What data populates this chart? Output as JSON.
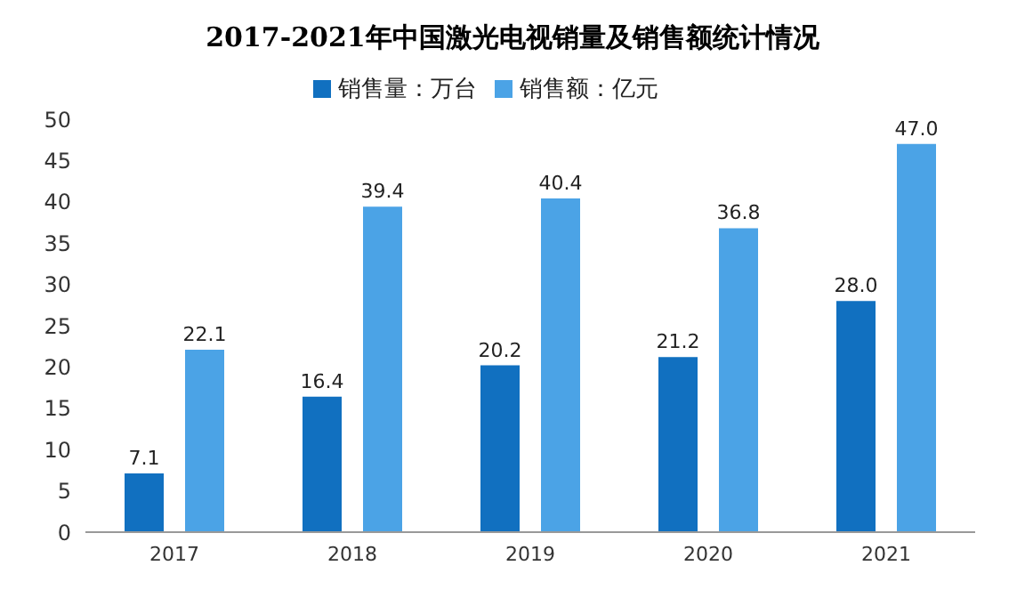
{
  "chart_data": {
    "type": "bar",
    "title": "2017-2021年中国激光电视销量及销售额统计情况",
    "categories": [
      "2017",
      "2018",
      "2019",
      "2020",
      "2021"
    ],
    "series": [
      {
        "name": "销售量：万台",
        "color": "#1170c0",
        "values": [
          7.1,
          16.4,
          20.2,
          21.2,
          28
        ],
        "value_labels": [
          "7.1",
          "16.4",
          "20.2",
          "21.2",
          "28.0"
        ]
      },
      {
        "name": "销售额：亿元",
        "color": "#4ba3e6",
        "values": [
          22.1,
          39.4,
          40.4,
          36.8,
          47
        ],
        "value_labels": [
          "22.1",
          "39.4",
          "40.4",
          "36.8",
          "47.0"
        ]
      }
    ],
    "ylim": [
      0,
      50
    ],
    "yticks": [
      0,
      5,
      10,
      15,
      20,
      25,
      30,
      35,
      40,
      45,
      50
    ],
    "legend": "top"
  }
}
